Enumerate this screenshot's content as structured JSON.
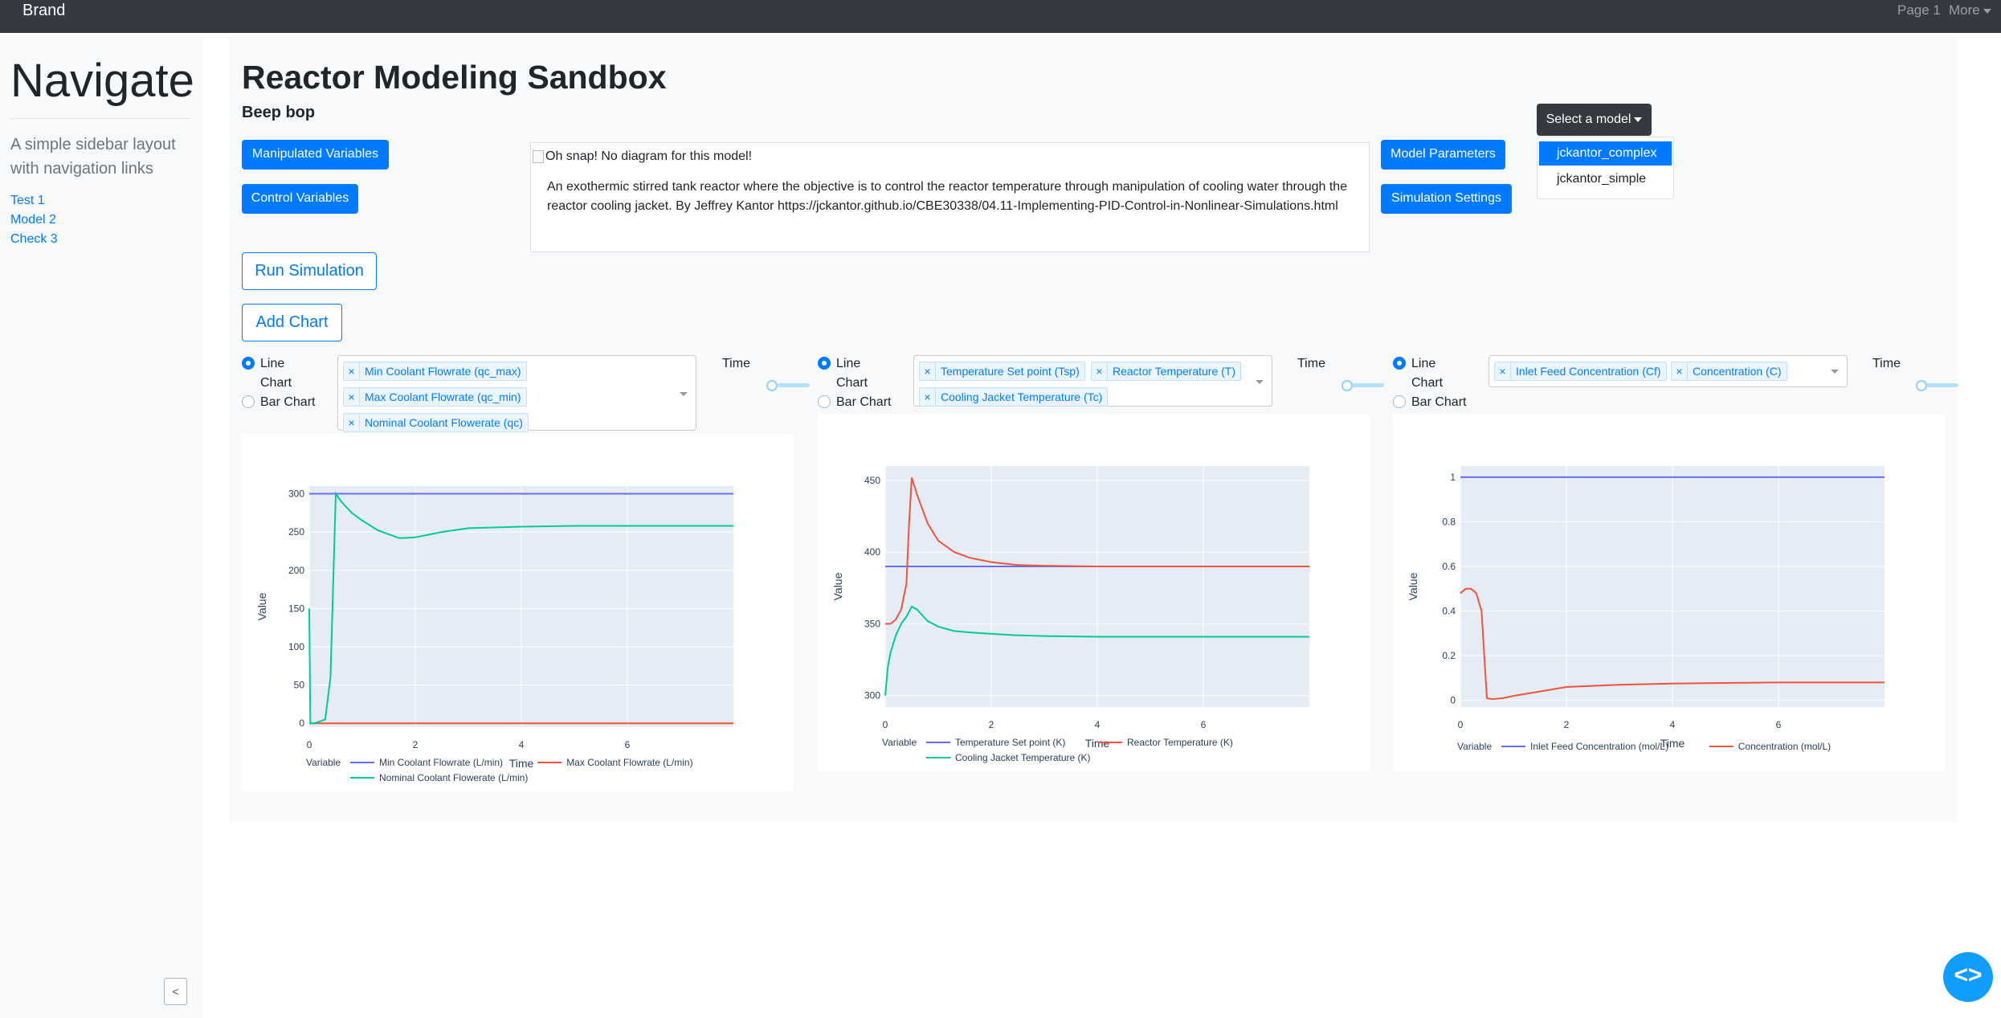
{
  "navbar": {
    "brand": "Brand",
    "page1": "Page 1",
    "more": "More"
  },
  "sidebar": {
    "title": "Navigate",
    "lead": "A simple sidebar layout with navigation links",
    "links": [
      "Test 1",
      "Model 2",
      "Check 3"
    ],
    "collapse": "<"
  },
  "main": {
    "title": "Reactor Modeling Sandbox",
    "subtitle": "Beep bop",
    "buttons": {
      "manipulated": "Manipulated Variables",
      "control": "Control Variables",
      "model_params": "Model Parameters",
      "sim_settings": "Simulation Settings",
      "run": "Run Simulation",
      "add_chart": "Add Chart"
    },
    "diagram_alt": "Oh snap! No diagram for this model!",
    "description": "An exothermic stirred tank reactor where the objective is to control the reactor temperature through manipulation of cooling water through the reactor cooling jacket. By Jeffrey Kantor https://jckantor.github.io/CBE30338/04.11-Implementing-PID-Control-in-Nonlinear-Simulations.html",
    "model_select": {
      "label": "Select a model",
      "options": [
        "jckantor_complex",
        "jckantor_simple"
      ],
      "selected": "jckantor_complex"
    }
  },
  "chart_controls": {
    "radio_line": "Line Chart",
    "radio_bar": "Bar Chart",
    "time_label": "Time",
    "tag_x": "×",
    "panels": [
      {
        "tags": [
          "Min Coolant Flowrate (qc_max)",
          "Max Coolant Flowrate (qc_min)",
          "Nominal Coolant Flowerate (qc)"
        ]
      },
      {
        "tags": [
          "Temperature Set point (Tsp)",
          "Reactor Temperature (T)",
          "Cooling Jacket Temperature (Tc)"
        ]
      },
      {
        "tags": [
          "Inlet Feed Concentration (Cf)",
          "Concentration (C)"
        ]
      }
    ]
  },
  "chart_data": [
    {
      "type": "line",
      "xlabel": "Time",
      "ylabel": "Value",
      "legend_title": "Variable",
      "xlim": [
        0,
        8
      ],
      "ylim": [
        -5,
        310
      ],
      "xticks": [
        0,
        2,
        4,
        6
      ],
      "yticks": [
        0,
        50,
        100,
        150,
        200,
        250,
        300
      ],
      "series": [
        {
          "name": "Min Coolant Flowrate (L/min)",
          "color": "#636efa",
          "x": [
            0,
            8
          ],
          "y": [
            300,
            300
          ]
        },
        {
          "name": "Max Coolant Flowrate (L/min)",
          "color": "#ef553b",
          "x": [
            0,
            8
          ],
          "y": [
            0,
            0
          ]
        },
        {
          "name": "Nominal Coolant Flowerate (L/min)",
          "color": "#00cc96",
          "x": [
            0,
            0.02,
            0.1,
            0.3,
            0.4,
            0.5,
            0.6,
            0.8,
            1.0,
            1.3,
            1.7,
            2.0,
            2.5,
            3,
            4,
            5,
            6,
            7,
            8
          ],
          "y": [
            150,
            0,
            0,
            5,
            60,
            300,
            290,
            275,
            265,
            252,
            242,
            243,
            250,
            255,
            257,
            258,
            258,
            258,
            258
          ]
        }
      ]
    },
    {
      "type": "line",
      "xlabel": "Time",
      "ylabel": "Value",
      "legend_title": "Variable",
      "xlim": [
        0,
        8
      ],
      "ylim": [
        292,
        460
      ],
      "xticks": [
        0,
        2,
        4,
        6
      ],
      "yticks": [
        300,
        350,
        400,
        450
      ],
      "series": [
        {
          "name": "Temperature Set point (K)",
          "color": "#636efa",
          "x": [
            0,
            8
          ],
          "y": [
            390,
            390
          ]
        },
        {
          "name": "Reactor Temperature (K)",
          "color": "#ef553b",
          "x": [
            0,
            0.1,
            0.2,
            0.3,
            0.4,
            0.45,
            0.5,
            0.6,
            0.8,
            1.0,
            1.3,
            1.6,
            2,
            2.5,
            3,
            4,
            5,
            8
          ],
          "y": [
            350,
            350,
            353,
            360,
            378,
            420,
            452,
            440,
            420,
            408,
            400,
            396,
            393,
            391,
            390.5,
            390,
            390,
            390
          ]
        },
        {
          "name": "Cooling Jacket Temperature (K)",
          "color": "#00cc96",
          "x": [
            0,
            0.05,
            0.1,
            0.2,
            0.3,
            0.4,
            0.5,
            0.6,
            0.8,
            1.0,
            1.3,
            1.6,
            2,
            2.5,
            3,
            4,
            5,
            8
          ],
          "y": [
            300,
            320,
            330,
            342,
            350,
            355,
            362,
            360,
            352,
            348,
            345,
            344,
            343,
            342,
            341.5,
            341,
            341,
            341
          ]
        }
      ]
    },
    {
      "type": "line",
      "xlabel": "Time",
      "ylabel": "Value",
      "legend_title": "Variable",
      "xlim": [
        0,
        8
      ],
      "ylim": [
        -0.03,
        1.05
      ],
      "xticks": [
        0,
        2,
        4,
        6
      ],
      "yticks": [
        0,
        0.2,
        0.4,
        0.6,
        0.8,
        1
      ],
      "series": [
        {
          "name": "Inlet Feed Concentration (mol/L)",
          "color": "#636efa",
          "x": [
            0,
            8
          ],
          "y": [
            1,
            1
          ]
        },
        {
          "name": "Concentration (mol/L)",
          "color": "#ef553b",
          "x": [
            0,
            0.1,
            0.2,
            0.3,
            0.4,
            0.45,
            0.5,
            0.6,
            0.8,
            1.0,
            1.5,
            2,
            3,
            4,
            5,
            6,
            8
          ],
          "y": [
            0.48,
            0.5,
            0.5,
            0.48,
            0.4,
            0.2,
            0.01,
            0.005,
            0.01,
            0.02,
            0.04,
            0.06,
            0.07,
            0.075,
            0.078,
            0.08,
            0.08
          ]
        }
      ]
    }
  ]
}
